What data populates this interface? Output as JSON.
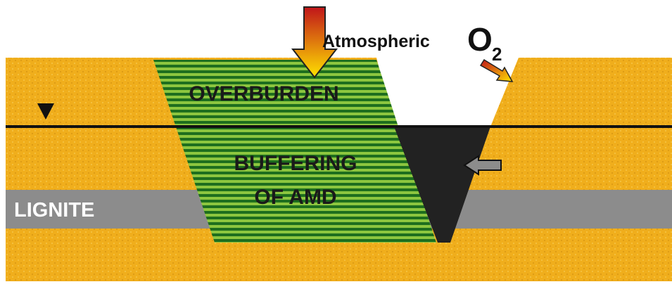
{
  "labels": {
    "atmospheric": "Atmospheric",
    "oxygen": "O",
    "oxygen_subscript": "2",
    "overburden": "OVERBURDEN",
    "buffering_line1": "BUFFERING",
    "buffering_line2": "OF AMD",
    "lignite": "LIGNITE"
  }
}
